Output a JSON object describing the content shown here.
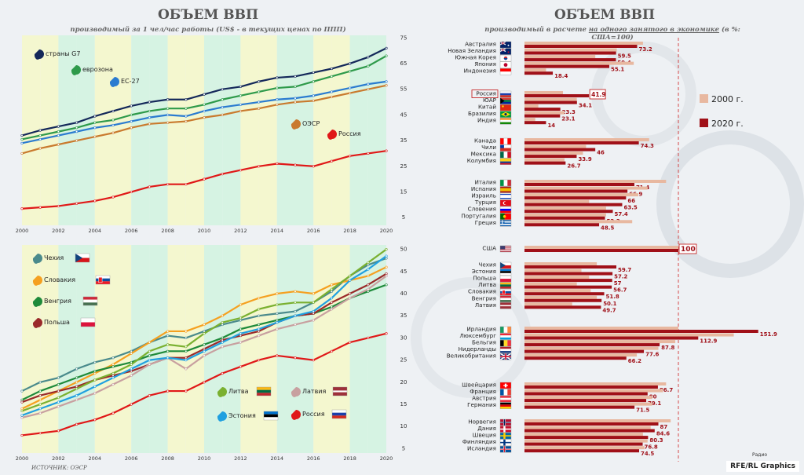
{
  "left": {
    "title": "ОБЪЕМ ВВП",
    "subtitle": "производимый за 1 чел/час работы (US$ - в текущих ценах по ППП)",
    "source": "ИСТОЧНИК: ОЭСР"
  },
  "right": {
    "title": "ОБЪЕМ ВВП",
    "subtitle_pre": "производимый в расчете ",
    "subtitle_u": "на одного занятого в экономике",
    "subtitle_post": " (в %: США=100)"
  },
  "credit": "RFE/RL Graphics",
  "radio_label": "Радио",
  "colors": {
    "g7": "#14285a",
    "ez": "#2e9a4a",
    "eu": "#2a7bd0",
    "oecd": "#c97a2e",
    "russia": "#e01818",
    "bar2000": "#e8b8a0",
    "bar2020": "#a01018"
  },
  "chart_data": [
    {
      "type": "line",
      "title": "производимый за 1 чел/час работы (US$ - в текущих ценах по ППП)",
      "x": [
        2000,
        2001,
        2002,
        2003,
        2004,
        2005,
        2006,
        2007,
        2008,
        2009,
        2010,
        2011,
        2012,
        2013,
        2014,
        2015,
        2016,
        2017,
        2018,
        2019,
        2020
      ],
      "x_ticks": [
        "2000",
        "2002",
        "2004",
        "2006",
        "2008",
        "2010",
        "2012",
        "2014",
        "2016",
        "2018",
        "2020"
      ],
      "y_ticks": [
        "5",
        "15",
        "25",
        "35",
        "45",
        "55",
        "65",
        "75"
      ],
      "ylim": [
        2,
        76
      ],
      "series": [
        {
          "name": "страны G7",
          "key": "g7",
          "values": [
            37,
            39,
            40.5,
            42,
            44.5,
            46.5,
            48.5,
            50,
            51,
            51,
            53,
            55,
            56,
            58,
            59.5,
            60,
            61.5,
            63,
            65,
            67.5,
            71
          ]
        },
        {
          "name": "еврозона",
          "key": "ez",
          "values": [
            35.5,
            37,
            38.5,
            40,
            42,
            43,
            45,
            46.5,
            47.5,
            47.5,
            49,
            51,
            52.5,
            54,
            55.5,
            56,
            58,
            60,
            62,
            64,
            68
          ]
        },
        {
          "name": "ЕС-27",
          "key": "eu",
          "values": [
            34,
            35.5,
            37,
            38.5,
            40,
            41,
            42.5,
            44,
            45,
            44.5,
            46.5,
            48,
            49,
            50,
            51,
            51.5,
            52.5,
            54,
            55.5,
            57,
            58
          ]
        },
        {
          "name": "ОЭСР",
          "key": "oecd",
          "values": [
            30,
            32,
            33.5,
            35,
            36.5,
            38,
            40,
            41.5,
            42,
            42.5,
            44,
            45,
            46.5,
            47.5,
            49,
            50,
            50.5,
            52,
            53.5,
            55,
            56.5
          ]
        },
        {
          "name": "Россия",
          "key": "russia",
          "values": [
            8.5,
            9,
            9.5,
            10.5,
            11.5,
            13,
            15,
            17,
            18,
            18,
            20,
            22,
            23.5,
            25,
            26,
            25.5,
            25,
            27,
            29,
            30,
            31
          ]
        }
      ]
    },
    {
      "type": "line",
      "title": "",
      "x": [
        2000,
        2001,
        2002,
        2003,
        2004,
        2005,
        2006,
        2007,
        2008,
        2009,
        2010,
        2011,
        2012,
        2013,
        2014,
        2015,
        2016,
        2017,
        2018,
        2019,
        2020
      ],
      "x_ticks": [
        "2000",
        "2002",
        "2004",
        "2006",
        "2008",
        "2010",
        "2012",
        "2014",
        "2016",
        "2018",
        "2020"
      ],
      "y_ticks": [
        "5",
        "10",
        "15",
        "20",
        "25",
        "30",
        "35",
        "40",
        "45",
        "50"
      ],
      "ylim": [
        4,
        51
      ],
      "series": [
        {
          "name": "Чехия",
          "key": "cz",
          "color": "#4a8a8c",
          "values": [
            18,
            20,
            21,
            23,
            24.5,
            25.5,
            27,
            29,
            30.5,
            30,
            31.5,
            33,
            34,
            35,
            35.5,
            36,
            38,
            40.5,
            44,
            46.5,
            48
          ]
        },
        {
          "name": "Словакия",
          "key": "sk",
          "color": "#f5a020",
          "values": [
            14,
            16,
            18,
            20,
            22,
            24,
            26.5,
            29,
            31.5,
            31.5,
            33,
            35,
            37.5,
            39,
            40,
            40.5,
            40,
            42,
            43,
            44,
            46
          ]
        },
        {
          "name": "Венгрия",
          "key": "hu",
          "color": "#1e8a3a",
          "values": [
            16,
            18,
            19.5,
            21,
            22.5,
            23.5,
            24.5,
            26,
            27,
            27,
            28.5,
            30,
            32,
            33,
            34,
            35,
            35.5,
            37,
            39,
            40.5,
            42
          ]
        },
        {
          "name": "Польша",
          "key": "pl",
          "color": "#9a2a2a",
          "values": [
            15.5,
            17,
            18,
            19,
            20.5,
            21.5,
            22.5,
            24,
            25.5,
            25.5,
            27.5,
            29.5,
            30.5,
            31.5,
            33.5,
            35,
            35.5,
            38,
            40,
            42,
            44.5
          ]
        },
        {
          "name": "Литва",
          "key": "lt",
          "color": "#7ab030",
          "values": [
            13.5,
            15,
            16.5,
            18.5,
            20.5,
            22,
            24,
            27,
            28.5,
            28,
            31,
            33.5,
            34.5,
            36.5,
            37.5,
            38,
            38,
            41,
            44,
            47,
            50
          ]
        },
        {
          "name": "Латвия",
          "key": "lv",
          "color": "#c8a0a0",
          "values": [
            12,
            13,
            14.5,
            16,
            17.5,
            19.5,
            21.5,
            24,
            25.5,
            23,
            26,
            28,
            29,
            30.5,
            32,
            33,
            34,
            36.5,
            39,
            41,
            44
          ]
        },
        {
          "name": "Эстония",
          "key": "ee",
          "color": "#20a0e0",
          "values": [
            12.5,
            14,
            15.5,
            17,
            19,
            21,
            23,
            25,
            25.5,
            25,
            27,
            29,
            31,
            32,
            33.5,
            35,
            36,
            39,
            43,
            45.5,
            48.5
          ]
        },
        {
          "name": "Россия",
          "key": "ru",
          "color": "#e01818",
          "values": [
            8,
            8.5,
            9,
            10.5,
            11.5,
            13,
            15,
            17,
            18,
            18,
            20,
            22,
            23.5,
            25,
            26,
            25.5,
            25,
            27,
            29,
            30,
            31
          ]
        }
      ]
    },
    {
      "type": "bar",
      "title": "производимый в расчете на одного занятого в экономике (в %: США=100)",
      "legend": [
        "2000 г.",
        "2020 г."
      ],
      "reference_value": 100,
      "groups": [
        [
          {
            "label": "Австралия",
            "flag": "au",
            "v2000": 77,
            "v2020": 73.2
          },
          {
            "label": "Новая Зеландия",
            "flag": "nz",
            "v2000": 60,
            "v2020": 59.5
          },
          {
            "label": "Южная Корея",
            "flag": "kr",
            "v2000": 46,
            "v2020": 59.4
          },
          {
            "label": "Япония",
            "flag": "jp",
            "v2000": 71,
            "v2020": 55.1
          },
          {
            "label": "Индонезия",
            "flag": "id",
            "v2000": 14,
            "v2020": 18.4
          }
        ],
        [
          {
            "label": "Россия",
            "flag": "ru",
            "v2000": 25,
            "v2020": 41.9,
            "boxed": true
          },
          {
            "label": "ЮАР",
            "flag": "za",
            "v2000": 34,
            "v2020": 34.1
          },
          {
            "label": "Китай",
            "flag": "cn",
            "v2000": 9,
            "v2020": 23.3
          },
          {
            "label": "Бразилия",
            "flag": "br",
            "v2000": 26,
            "v2020": 23.1
          },
          {
            "label": "Индия",
            "flag": "in",
            "v2000": 7,
            "v2020": 14
          }
        ],
        [
          {
            "label": "Канада",
            "flag": "ca",
            "v2000": 81,
            "v2020": 74.3
          },
          {
            "label": "Чили",
            "flag": "cl",
            "v2000": 40,
            "v2020": 46
          },
          {
            "label": "Мексика",
            "flag": "mx",
            "v2000": 38,
            "v2020": 33.9
          },
          {
            "label": "Колумбия",
            "flag": "co",
            "v2000": 26,
            "v2020": 26.7
          }
        ],
        [
          {
            "label": "Италия",
            "flag": "it",
            "v2000": 92,
            "v2020": 71.4
          },
          {
            "label": "Испания",
            "flag": "es",
            "v2000": 80,
            "v2020": 66.9
          },
          {
            "label": "Израиль",
            "flag": "il",
            "v2000": 74,
            "v2020": 66
          },
          {
            "label": "Турция",
            "flag": "tr",
            "v2000": 42,
            "v2020": 63.5
          },
          {
            "label": "Словения",
            "flag": "si",
            "v2000": 53,
            "v2020": 57.4
          },
          {
            "label": "Португалия",
            "flag": "pt",
            "v2000": 53,
            "v2020": 52.3
          },
          {
            "label": "Греция",
            "flag": "gr",
            "v2000": 70,
            "v2020": 48.5
          }
        ],
        [
          {
            "label": "США",
            "flag": "us",
            "v2000": 100,
            "v2020": 100,
            "boxed": true
          }
        ],
        [
          {
            "label": "Чехия",
            "flag": "cz",
            "v2000": 47,
            "v2020": 59.7
          },
          {
            "label": "Эстония",
            "flag": "ee",
            "v2000": 37,
            "v2020": 57.2
          },
          {
            "label": "Польша",
            "flag": "pl",
            "v2000": 42,
            "v2020": 57
          },
          {
            "label": "Литва",
            "flag": "lt",
            "v2000": 34,
            "v2020": 56.7
          },
          {
            "label": "Словакия",
            "flag": "sk",
            "v2000": 43,
            "v2020": 51.8
          },
          {
            "label": "Венгрия",
            "flag": "hu",
            "v2000": 47,
            "v2020": 50.1
          },
          {
            "label": "Латвия",
            "flag": "lv",
            "v2000": 31,
            "v2020": 49.7
          }
        ],
        [
          {
            "label": "Ирландия",
            "flag": "ie",
            "v2000": 100,
            "v2020": 151.9
          },
          {
            "label": "Люксембург",
            "flag": "lu",
            "v2000": 136,
            "v2020": 112.9
          },
          {
            "label": "Бельгия",
            "flag": "be",
            "v2000": 98,
            "v2020": 87.8
          },
          {
            "label": "Нидерланды",
            "flag": "nl",
            "v2000": 87,
            "v2020": 77.6
          },
          {
            "label": "Великобритания",
            "flag": "gb",
            "v2000": 73,
            "v2020": 66.2
          }
        ],
        [
          {
            "label": "Швейцария",
            "flag": "ch",
            "v2000": 92,
            "v2020": 86.7
          },
          {
            "label": "Франция",
            "flag": "fr",
            "v2000": 90,
            "v2020": 80
          },
          {
            "label": "Австрия",
            "flag": "at",
            "v2000": 83,
            "v2020": 79.1
          },
          {
            "label": "Германия",
            "flag": "de",
            "v2000": 83,
            "v2020": 71.5
          }
        ],
        [
          {
            "label": "Норвегия",
            "flag": "no",
            "v2000": 95,
            "v2020": 87
          },
          {
            "label": "Дания",
            "flag": "dk",
            "v2000": 82,
            "v2020": 84.6
          },
          {
            "label": "Швеция",
            "flag": "se",
            "v2000": 77,
            "v2020": 80.3
          },
          {
            "label": "Финляндия",
            "flag": "fi",
            "v2000": 80,
            "v2020": 76.8
          },
          {
            "label": "Исландия",
            "flag": "is",
            "v2000": 78,
            "v2020": 74.5
          }
        ]
      ]
    }
  ]
}
